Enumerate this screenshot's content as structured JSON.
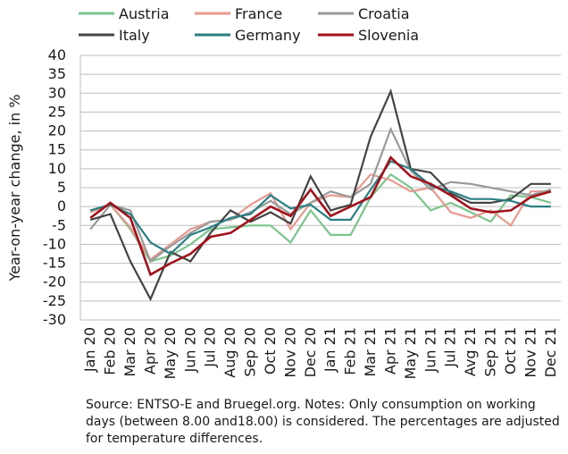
{
  "caption": "Source: ENTSO-E and Bruegel.org. Notes: Only consumption on working days (between 8.00 and18.00) is considered. The percentages are adjusted for temperature differences.",
  "chart_data": {
    "type": "line",
    "title": "",
    "xlabel": "",
    "ylabel": "Year-on-year change, in %",
    "ylim": [
      -30,
      40
    ],
    "yticks": [
      40,
      35,
      30,
      25,
      20,
      15,
      10,
      5,
      0,
      -5,
      -10,
      -15,
      -20,
      -25,
      -30
    ],
    "grid": "horizontal",
    "legend_position": "top",
    "categories": [
      "Jan 20",
      "Feb 20",
      "Mar 20",
      "Apr 20",
      "May 20",
      "Jun 20",
      "Jul 20",
      "Aug 20",
      "Sep 20",
      "Oct 20",
      "Nov 20",
      "Dec 20",
      "Jan 21",
      "Feb 21",
      "Mar 21",
      "Apr 21",
      "May 21",
      "Jun 21",
      "Jul 21",
      "Avg 21",
      "Sep 21",
      "Oct 21",
      "Nov 21",
      "Dec 21"
    ],
    "series": [
      {
        "name": "Austria",
        "color": "#7dc58f",
        "values": [
          -1,
          0.5,
          -6,
          -14.5,
          -13,
          -10,
          -6,
          -5.5,
          -5,
          -5,
          -9.5,
          -1,
          -7.5,
          -7.5,
          2.5,
          8.5,
          5,
          -1,
          1,
          -1.5,
          -4,
          3,
          2.5,
          1
        ]
      },
      {
        "name": "France",
        "color": "#e69a90",
        "values": [
          -1.5,
          0.5,
          -5.5,
          -14,
          -10,
          -6,
          -4,
          -3.5,
          0.5,
          3.5,
          -6,
          1,
          3,
          2.5,
          8.5,
          7,
          4,
          5,
          -1.5,
          -3,
          -1,
          -5,
          4,
          4
        ]
      },
      {
        "name": "Croatia",
        "color": "#9a9a9a",
        "values": [
          -6,
          0.5,
          -1,
          -14.5,
          -10.5,
          -7,
          -4,
          -3.5,
          -1.5,
          1.5,
          -2,
          1,
          4,
          2.5,
          6,
          20.5,
          9.5,
          4.5,
          6.5,
          6,
          5,
          4,
          3,
          4.5
        ]
      },
      {
        "name": "Italy",
        "color": "#444444",
        "values": [
          -3.5,
          -2,
          -14.5,
          -24.5,
          -12,
          -14.5,
          -7,
          -1,
          -4,
          -1.5,
          -4.5,
          8,
          -1,
          0.5,
          18.5,
          30.5,
          10,
          9,
          3.5,
          1,
          1,
          2,
          6,
          6
        ]
      },
      {
        "name": "Germany",
        "color": "#2a7f83",
        "values": [
          -1,
          0.5,
          -2,
          -9.5,
          -12.5,
          -7.5,
          -5.5,
          -3,
          -2,
          3,
          -0.5,
          0.5,
          -3.5,
          -3.5,
          4.5,
          12,
          10,
          5.5,
          4,
          2,
          2,
          1.5,
          0,
          0
        ]
      },
      {
        "name": "Slovenia",
        "color": "#a0121c",
        "values": [
          -3,
          1,
          -3,
          -18,
          -15,
          -12.5,
          -8,
          -7,
          -3.5,
          0,
          -2.5,
          4.5,
          -2.5,
          0,
          2.5,
          13,
          8,
          6,
          3,
          -0.5,
          -1.5,
          -1,
          2.5,
          4
        ]
      }
    ]
  }
}
